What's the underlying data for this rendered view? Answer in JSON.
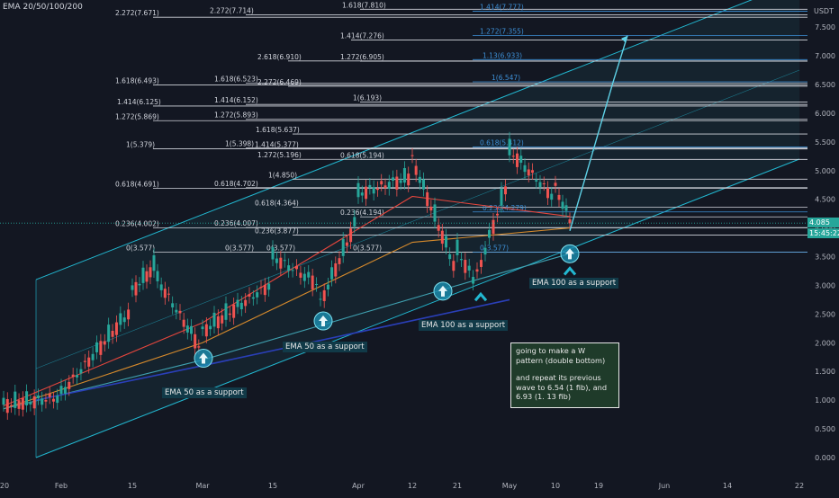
{
  "indicator_legend": "EMA 20/50/100/200",
  "currency": "USDT",
  "last_price": "4.085",
  "countdown": "15:45:22",
  "note": {
    "line1": "going to make a W pattern (double bottom)",
    "line2": "and repeat its previous wave to 6.54 (1 fib), and 6.93 (1. 13 fib)"
  },
  "annotations": [
    "EMA 50 as a support",
    "EMA 50 as a support",
    "EMA 100 as a support",
    "EMA 100 as a support"
  ],
  "colors": {
    "background": "#131722",
    "candle_up": "#26a69a",
    "candle_down": "#ef5350",
    "channel": "#22b8d1",
    "ema20": "#e5463d",
    "ema50": "#d68a2c",
    "ema100": "#3fa0b0",
    "ema200": "#2a3fb8",
    "fib_white": "#d1d4dc",
    "fib_blue": "#3d8fd6",
    "note_bg": "#1f3b2a"
  },
  "chart_data": {
    "type": "candlestick",
    "y_axis": {
      "ylim": [
        -0.1,
        8.05
      ],
      "ticks": [
        "0.000",
        "0.500",
        "1.000",
        "1.500",
        "2.000",
        "2.500",
        "3.000",
        "3.500",
        "4.000",
        "4.500",
        "5.000",
        "5.500",
        "6.000",
        "6.500",
        "7.000",
        "7.500"
      ]
    },
    "x_axis": {
      "ticks": [
        "20",
        "Feb",
        "15",
        "Mar",
        "15",
        "Apr",
        "12",
        "21",
        "May",
        "10",
        "19",
        "Jun",
        "14",
        "22"
      ]
    },
    "fib_levels": [
      {
        "label": "2.272(7.671)",
        "price": 7.671,
        "color": "white"
      },
      {
        "label": "2.272(7.714)",
        "price": 7.714,
        "color": "white"
      },
      {
        "label": "1.618(7.810)",
        "price": 7.81,
        "color": "white"
      },
      {
        "label": "1.414(7.777)",
        "price": 7.777,
        "color": "blue"
      },
      {
        "label": "1.272(7.355)",
        "price": 7.355,
        "color": "blue"
      },
      {
        "label": "1.414(7.276)",
        "price": 7.276,
        "color": "white"
      },
      {
        "label": "2.618(6.910)",
        "price": 6.91,
        "color": "white"
      },
      {
        "label": "1.272(6.905)",
        "price": 6.905,
        "color": "white"
      },
      {
        "label": "1.13(6.933)",
        "price": 6.933,
        "color": "blue"
      },
      {
        "label": "1.618(6.493)",
        "price": 6.493,
        "color": "white"
      },
      {
        "label": "1.618(6.523)",
        "price": 6.523,
        "color": "white"
      },
      {
        "label": "2.272(6.469)",
        "price": 6.469,
        "color": "white"
      },
      {
        "label": "1(6.547)",
        "price": 6.547,
        "color": "blue"
      },
      {
        "label": "1.414(6.125)",
        "price": 6.125,
        "color": "white"
      },
      {
        "label": "1.414(6.152)",
        "price": 6.152,
        "color": "white"
      },
      {
        "label": "1(6.193)",
        "price": 6.193,
        "color": "white"
      },
      {
        "label": "1.272(5.869)",
        "price": 5.869,
        "color": "white"
      },
      {
        "label": "1.272(5.893)",
        "price": 5.893,
        "color": "white"
      },
      {
        "label": "1.618(5.637)",
        "price": 5.637,
        "color": "white"
      },
      {
        "label": "1(5.379)",
        "price": 5.379,
        "color": "white"
      },
      {
        "label": "1(5.398)",
        "price": 5.398,
        "color": "white"
      },
      {
        "label": "1.414(5.377)",
        "price": 5.377,
        "color": "white"
      },
      {
        "label": "0.618(5.412)",
        "price": 5.412,
        "color": "blue"
      },
      {
        "label": "1.272(5.196)",
        "price": 5.196,
        "color": "white"
      },
      {
        "label": "0.618(5.194)",
        "price": 5.194,
        "color": "white"
      },
      {
        "label": "1(4.850)",
        "price": 4.85,
        "color": "white"
      },
      {
        "label": "0.618(4.691)",
        "price": 4.691,
        "color": "white"
      },
      {
        "label": "0.618(4.702)",
        "price": 4.702,
        "color": "white"
      },
      {
        "label": "0.618(4.364)",
        "price": 4.364,
        "color": "white"
      },
      {
        "label": "0.236(4.194)",
        "price": 4.194,
        "color": "white"
      },
      {
        "label": "0.236(4.279)",
        "price": 4.279,
        "color": "blue"
      },
      {
        "label": "0.236(4.002)",
        "price": 4.002,
        "color": "white"
      },
      {
        "label": "0.236(4.007)",
        "price": 4.007,
        "color": "white"
      },
      {
        "label": "0.236(3.877)",
        "price": 3.877,
        "color": "white"
      },
      {
        "label": "0(3.577)",
        "price": 3.577,
        "color": "white"
      },
      {
        "label": "0(3.577)",
        "price": 3.577,
        "color": "white"
      },
      {
        "label": "0(3.577)",
        "price": 3.577,
        "color": "white"
      },
      {
        "label": "0(3.577)",
        "price": 3.577,
        "color": "white"
      },
      {
        "label": "0(3.577)",
        "price": 3.577,
        "color": "blue"
      }
    ],
    "channel": {
      "upper": [
        {
          "x": "Jan 28",
          "y": 3.1
        },
        {
          "x": "Jun 22",
          "y": 8.3
        }
      ],
      "lower": [
        {
          "x": "Jan 28",
          "y": 0.0
        },
        {
          "x": "Jun 22",
          "y": 5.2
        }
      ]
    },
    "projection": [
      {
        "x": "May 13",
        "y": 3.95
      },
      {
        "x": "May 22",
        "y": 6.54
      },
      {
        "x": "May 28",
        "y": 7.35
      }
    ],
    "candles_summary": [
      {
        "date": "Jan 20",
        "open": 0.85,
        "close": 0.92
      },
      {
        "date": "Feb 1",
        "open": 1.05,
        "close": 1.12
      },
      {
        "date": "Feb 15",
        "open": 2.6,
        "close": 2.9
      },
      {
        "date": "Feb 20",
        "open": 3.4,
        "close": 3.1
      },
      {
        "date": "Mar 1",
        "open": 1.85,
        "close": 2.2
      },
      {
        "date": "Mar 15",
        "open": 3.05,
        "close": 3.5
      },
      {
        "date": "Mar 23",
        "open": 3.0,
        "close": 2.7
      },
      {
        "date": "Apr 1",
        "open": 4.2,
        "close": 4.6
      },
      {
        "date": "Apr 12",
        "open": 4.9,
        "close": 5.2
      },
      {
        "date": "Apr 21",
        "open": 3.2,
        "close": 3.6
      },
      {
        "date": "Apr 25",
        "open": 3.0,
        "close": 3.2
      },
      {
        "date": "May 1",
        "open": 4.9,
        "close": 5.35
      },
      {
        "date": "May 10",
        "open": 4.5,
        "close": 4.7
      },
      {
        "date": "May 13",
        "open": 4.15,
        "close": 4.08
      }
    ],
    "ema_values": {
      "ema20": [
        {
          "x": "Jan 20",
          "y": 0.9
        },
        {
          "x": "Mar 1",
          "y": 2.35
        },
        {
          "x": "Apr 12",
          "y": 4.55
        },
        {
          "x": "May 13",
          "y": 4.2
        }
      ],
      "ema50": [
        {
          "x": "Jan 20",
          "y": 0.85
        },
        {
          "x": "Mar 1",
          "y": 2.0
        },
        {
          "x": "Apr 12",
          "y": 3.75
        },
        {
          "x": "May 13",
          "y": 4.0
        }
      ],
      "ema100": [
        {
          "x": "Jan 20",
          "y": 0.85
        },
        {
          "x": "Mar 1",
          "y": 1.7
        },
        {
          "x": "Apr 25",
          "y": 3.1
        },
        {
          "x": "May 13",
          "y": 3.55
        }
      ],
      "ema200": [
        {
          "x": "Jan 28",
          "y": 1.0
        },
        {
          "x": "Mar 1",
          "y": 1.6
        },
        {
          "x": "May 1",
          "y": 2.75
        }
      ]
    }
  }
}
